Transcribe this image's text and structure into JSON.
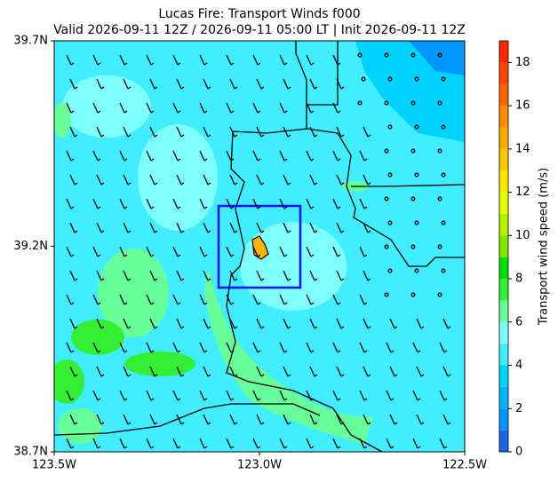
{
  "chart_data": {
    "type": "map",
    "title": "Lucas Fire: Transport Winds f000",
    "subtitle": "Valid 2026-09-11 12Z / 2026-09-11 05:00 LT | Init 2026-09-11 12Z",
    "xlim": [
      -123.5,
      -122.5
    ],
    "xticks": [
      {
        "value": -123.5,
        "label": "123.5W"
      },
      {
        "value": -123.0,
        "label": "123.0W"
      },
      {
        "value": -122.5,
        "label": "122.5W"
      }
    ],
    "ylim": [
      38.7,
      39.7
    ],
    "yticks": [
      {
        "value": 38.7,
        "label": "38.7N"
      },
      {
        "value": 39.2,
        "label": "39.2N"
      },
      {
        "value": 39.7,
        "label": "39.7N"
      }
    ],
    "colorbar": {
      "label": "Transport wind speed (m/s)",
      "lim": [
        0,
        19
      ],
      "ticks": [
        0,
        2,
        4,
        6,
        8,
        10,
        12,
        14,
        16,
        18
      ],
      "levels": [
        0,
        1,
        2,
        3,
        4,
        5,
        6,
        7,
        8,
        9,
        10,
        11,
        12,
        13,
        14,
        15,
        16,
        17,
        18,
        19
      ],
      "colors": [
        "#1e64e6",
        "#0096ff",
        "#00b4ff",
        "#00d2ff",
        "#40eeff",
        "#80ffff",
        "#66ff99",
        "#33ee33",
        "#00dd00",
        "#80e600",
        "#b4f000",
        "#e6ff00",
        "#ffe600",
        "#ffc800",
        "#ffaa00",
        "#ff8c00",
        "#ff6400",
        "#ff4600",
        "#ff2800"
      ]
    }
  }
}
